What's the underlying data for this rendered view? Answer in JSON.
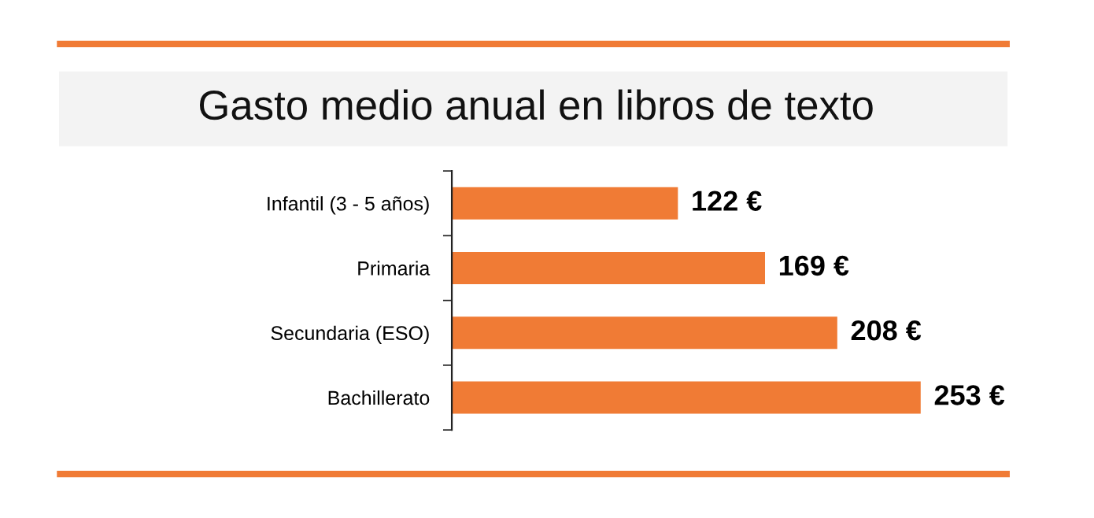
{
  "chart_data": {
    "type": "bar",
    "orientation": "horizontal",
    "title": "Gasto medio anual en libros de texto",
    "categories": [
      "Infantil (3 - 5 años)",
      "Primaria",
      "Secundaria (ESO)",
      "Bachillerato"
    ],
    "values": [
      122,
      169,
      208,
      253
    ],
    "value_labels": [
      "122 €",
      "169 €",
      "208 €",
      "253 €"
    ],
    "color": "#f07b35",
    "grid": false,
    "legend": false,
    "tick_labels": "y"
  }
}
